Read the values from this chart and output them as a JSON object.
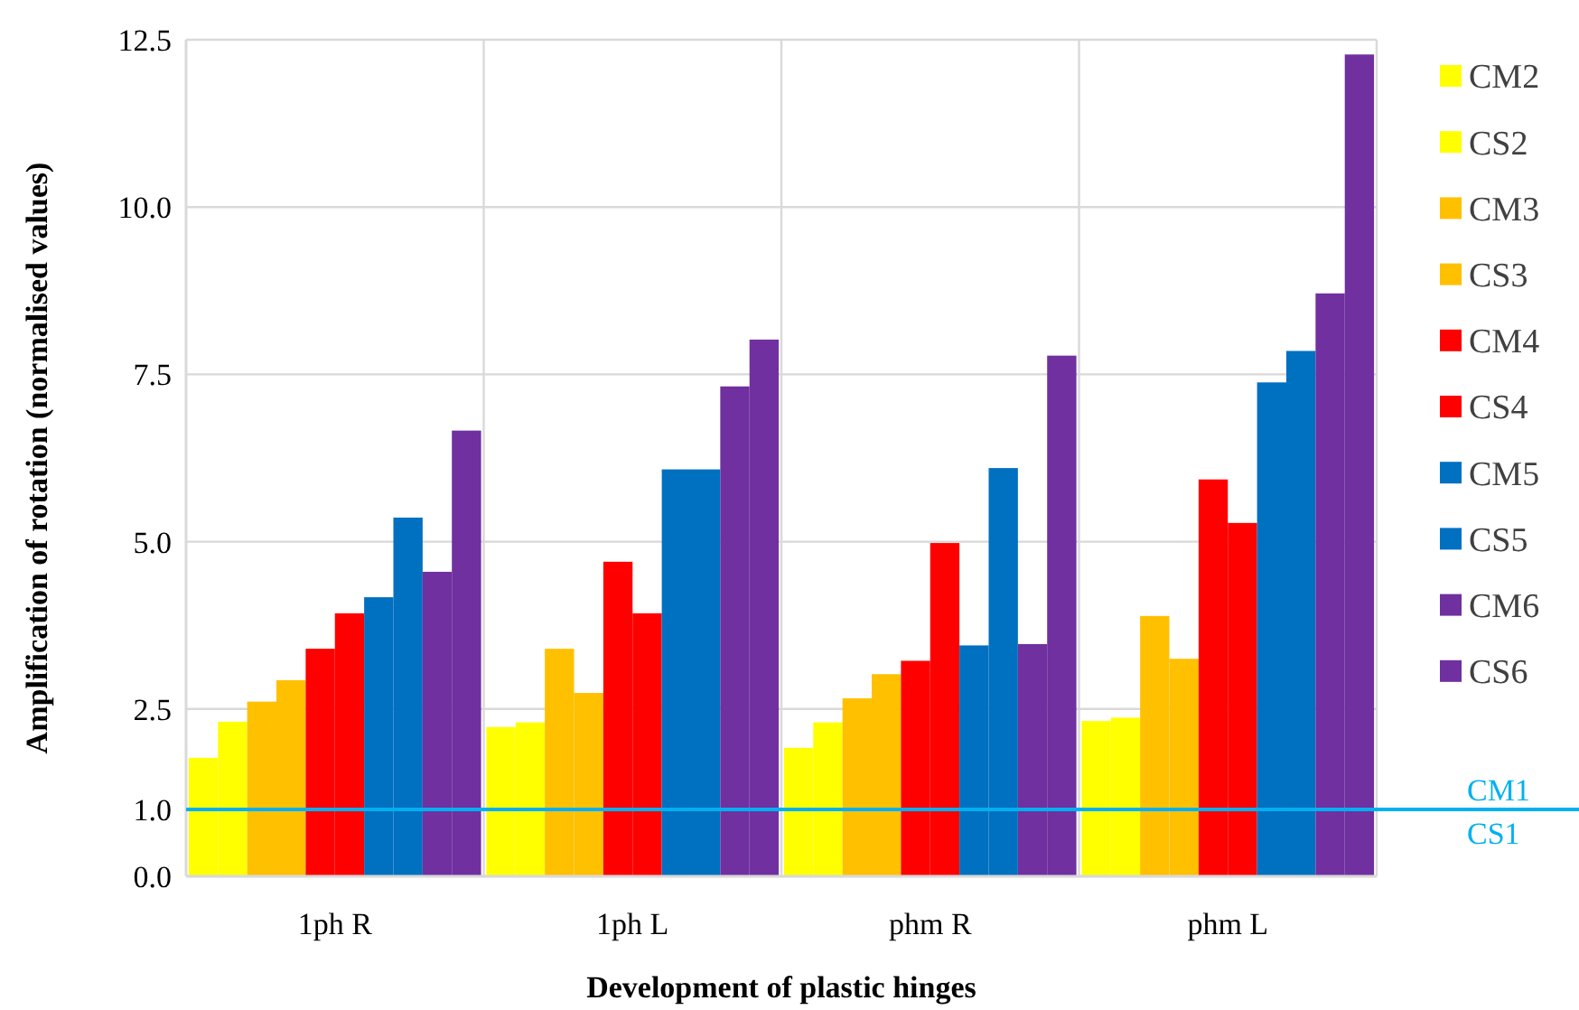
{
  "chart_data": {
    "type": "bar",
    "xlabel": "Development of plastic hinges",
    "ylabel": "Amplification of rotation (normalised values)",
    "categories": [
      "1ph R",
      "1ph L",
      "phm R",
      "phm L"
    ],
    "series": [
      {
        "name": "CM2",
        "color": "#ffff00",
        "values": [
          1.77,
          2.23,
          1.92,
          2.32
        ]
      },
      {
        "name": "CS2",
        "color": "#ffff00",
        "values": [
          2.31,
          2.3,
          2.3,
          2.37
        ]
      },
      {
        "name": "CM3",
        "color": "#ffc000",
        "values": [
          2.61,
          3.4,
          2.66,
          3.89
        ]
      },
      {
        "name": "CS3",
        "color": "#ffc000",
        "values": [
          2.93,
          2.74,
          3.02,
          3.25
        ]
      },
      {
        "name": "CM4",
        "color": "#ff0000",
        "values": [
          3.4,
          4.7,
          3.22,
          5.93
        ]
      },
      {
        "name": "CS4",
        "color": "#ff0000",
        "values": [
          3.93,
          3.93,
          4.98,
          5.28
        ]
      },
      {
        "name": "CM5",
        "color": "#0070c0",
        "values": [
          4.17,
          6.08,
          3.45,
          7.38
        ]
      },
      {
        "name": "CS5",
        "color": "#0070c0",
        "values": [
          5.36,
          6.08,
          6.1,
          7.85
        ]
      },
      {
        "name": "CM6",
        "color": "#7030a0",
        "values": [
          4.55,
          7.32,
          3.47,
          8.71
        ]
      },
      {
        "name": "CS6",
        "color": "#7030a0",
        "values": [
          6.66,
          8.02,
          7.78,
          12.28
        ]
      }
    ],
    "ylim": [
      0,
      12.5
    ],
    "yticks": [
      {
        "value": 0,
        "label": "0.0"
      },
      {
        "value": 1,
        "label": "1.0"
      },
      {
        "value": 2.5,
        "label": "2.5"
      },
      {
        "value": 5,
        "label": "5.0"
      },
      {
        "value": 7.5,
        "label": "7.5"
      },
      {
        "value": 10,
        "label": "10.0"
      },
      {
        "value": 12.5,
        "label": "12.5"
      }
    ],
    "ref_lines": [
      {
        "axis": "y",
        "value": 1,
        "label": "CM1",
        "color": "#00b0f0"
      }
    ],
    "annotations": [
      {
        "text": "CS1",
        "y": 1
      }
    ],
    "grid": true,
    "legend": "right"
  }
}
